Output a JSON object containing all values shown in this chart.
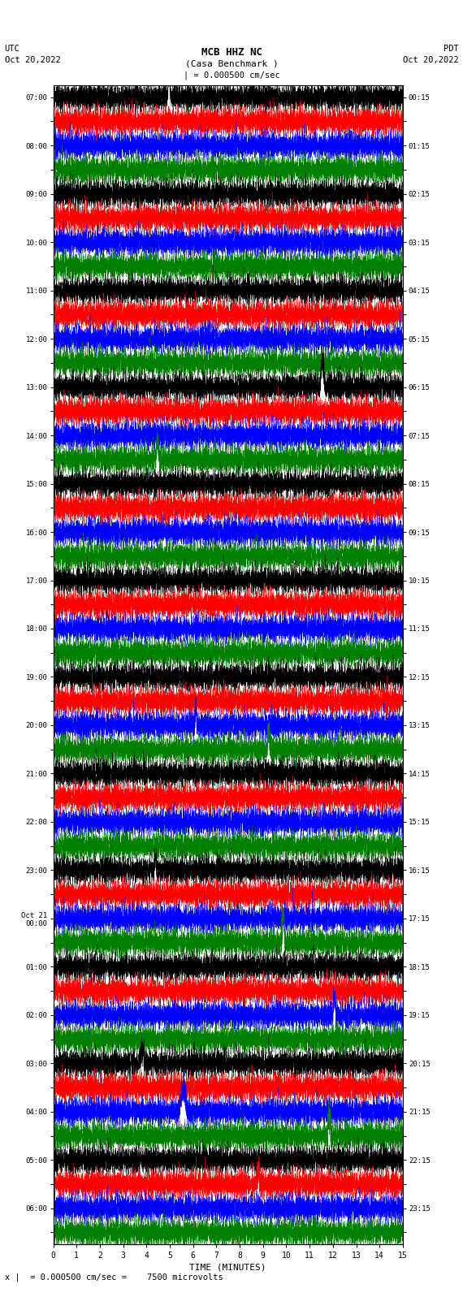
{
  "title_line1": "MCB HHZ NC",
  "title_line2": "(Casa Benchmark )",
  "scale_text": "= 0.000500 cm/sec",
  "bottom_note": "x |  = 0.000500 cm/sec =    7500 microvolts",
  "xlabel": "TIME (MINUTES)",
  "left_times": [
    "07:00",
    "",
    "08:00",
    "",
    "09:00",
    "",
    "10:00",
    "",
    "11:00",
    "",
    "12:00",
    "",
    "13:00",
    "",
    "14:00",
    "",
    "15:00",
    "",
    "16:00",
    "",
    "17:00",
    "",
    "18:00",
    "",
    "19:00",
    "",
    "20:00",
    "",
    "21:00",
    "",
    "22:00",
    "",
    "23:00",
    "",
    "Oct 21\n00:00",
    "",
    "01:00",
    "",
    "02:00",
    "",
    "03:00",
    "",
    "04:00",
    "",
    "05:00",
    "",
    "06:00",
    ""
  ],
  "right_times": [
    "00:15",
    "",
    "01:15",
    "",
    "02:15",
    "",
    "03:15",
    "",
    "04:15",
    "",
    "05:15",
    "",
    "06:15",
    "",
    "07:15",
    "",
    "08:15",
    "",
    "09:15",
    "",
    "10:15",
    "",
    "11:15",
    "",
    "12:15",
    "",
    "13:15",
    "",
    "14:15",
    "",
    "15:15",
    "",
    "16:15",
    "",
    "17:15",
    "",
    "18:15",
    "",
    "19:15",
    "",
    "20:15",
    "",
    "21:15",
    "",
    "22:15",
    "",
    "23:15",
    ""
  ],
  "n_rows": 48,
  "colors": [
    "black",
    "red",
    "blue",
    "green"
  ],
  "fig_width": 5.7,
  "fig_height": 16.13,
  "bg_color": "white",
  "seed": 42,
  "n_pts": 6000,
  "row_amplitude": 0.55,
  "base_freq": 8.0,
  "lw": 0.25
}
